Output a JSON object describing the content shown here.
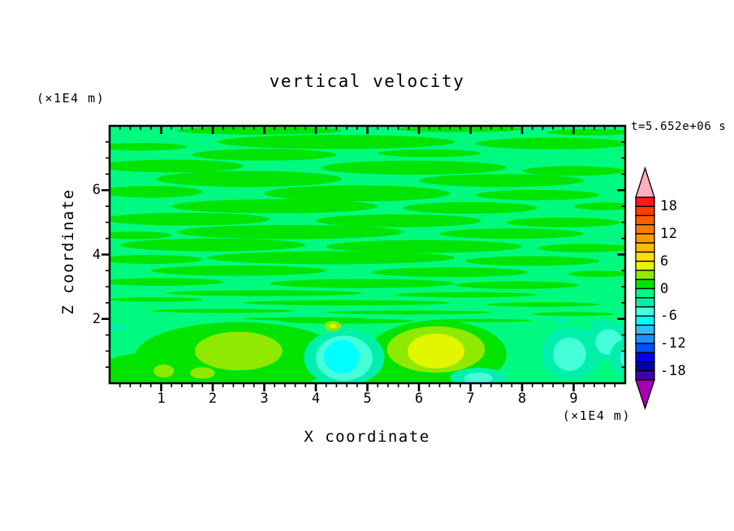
{
  "title": "vertical velocity",
  "timestamp": "t=5.652e+06 s",
  "axes": {
    "x": {
      "label": "X coordinate",
      "unit_note": "(×1E4 m)",
      "min": 0,
      "max": 10,
      "tick_labels": [
        "1",
        "2",
        "3",
        "4",
        "5",
        "6",
        "7",
        "8",
        "9"
      ],
      "major_ticks": [
        1,
        2,
        3,
        4,
        5,
        6,
        7,
        8,
        9
      ],
      "minor_step": 0.2
    },
    "z": {
      "label": "Z coordinate",
      "unit_note": "(×1E4 m)",
      "min": 0,
      "max": 8,
      "tick_labels": [
        "6",
        "4",
        "2"
      ],
      "major_ticks": [
        6,
        4,
        2
      ],
      "minor_step": 0.5
    }
  },
  "chart_data": {
    "type": "filled-contour",
    "title": "vertical velocity",
    "time_annotation": "t=5.652e+06 s",
    "xlabel": "X coordinate (×1E4 m)",
    "ylabel": "Z coordinate (×1E4 m)",
    "xlim": [
      0,
      10
    ],
    "ylim": [
      0,
      8
    ],
    "contour_interval": 2,
    "colorbar": {
      "vmax": 20,
      "vmin": -20,
      "step": 2,
      "labels": [
        "18",
        "12",
        "6",
        "0",
        "-6",
        "-12",
        "-18"
      ],
      "label_values": [
        18,
        12,
        6,
        0,
        -6,
        -12,
        -18
      ],
      "over_color": "#FFB0BC",
      "under_color": "#A800B4",
      "segment_colors_top_to_bottom": [
        "#FF1A1A",
        "#FF3C00",
        "#FF5C00",
        "#FF7C00",
        "#FF9C00",
        "#FFBC00",
        "#FFDE00",
        "#E2F600",
        "#8FE900",
        "#00E400",
        "#00FA80",
        "#00F0AC",
        "#45FFD9",
        "#00FFFF",
        "#2FBFFF",
        "#1E8FFF",
        "#0050FF",
        "#0000E8",
        "#0000A8",
        "#4400A8"
      ]
    },
    "palette": {
      "background": "#00FA80",
      "green": "#00E400",
      "chartreuse": "#8FE900",
      "yellow": "#E2F600",
      "aqua": "#00F0AC",
      "lightturq": "#45FFD9",
      "cyan": "#00FFFF"
    },
    "background_level_range": "-2..0",
    "field_summary": "Mostly near-zero field: wavy horizontal bands of 0..2 (green) on a -2..0 (spring green) background aloft; fine striations near z=2-3; updraft blobs (up to 4..6) near surface at x=1.5-3 and x=5.5-7; downdraft pockets (down to -8..-6) near surface at x=4-5 and x=8.5-10.",
    "streaks_level_0_to_2": [
      [
        2.9,
        7.85,
        1.6,
        0.12
      ],
      [
        6.8,
        7.9,
        1.2,
        0.1
      ],
      [
        9.3,
        7.8,
        0.8,
        0.1
      ],
      [
        4.4,
        7.5,
        2.3,
        0.22
      ],
      [
        8.6,
        7.45,
        1.5,
        0.18
      ],
      [
        0.6,
        7.35,
        0.9,
        0.12
      ],
      [
        3.0,
        7.1,
        1.4,
        0.18
      ],
      [
        6.2,
        7.15,
        1.0,
        0.12
      ],
      [
        1.2,
        6.75,
        1.4,
        0.2
      ],
      [
        5.9,
        6.7,
        1.8,
        0.22
      ],
      [
        9.0,
        6.6,
        1.0,
        0.15
      ],
      [
        2.7,
        6.35,
        1.8,
        0.25
      ],
      [
        7.6,
        6.3,
        1.6,
        0.2
      ],
      [
        0.8,
        5.95,
        1.0,
        0.18
      ],
      [
        4.8,
        5.9,
        1.8,
        0.25
      ],
      [
        8.3,
        5.85,
        1.2,
        0.16
      ],
      [
        3.2,
        5.5,
        2.0,
        0.22
      ],
      [
        7.0,
        5.45,
        1.3,
        0.18
      ],
      [
        9.6,
        5.5,
        0.6,
        0.12
      ],
      [
        1.5,
        5.1,
        1.6,
        0.2
      ],
      [
        5.6,
        5.05,
        1.6,
        0.2
      ],
      [
        8.8,
        5.0,
        1.1,
        0.15
      ],
      [
        3.5,
        4.7,
        2.2,
        0.22
      ],
      [
        7.8,
        4.65,
        1.4,
        0.16
      ],
      [
        0.5,
        4.6,
        0.7,
        0.12
      ],
      [
        2.0,
        4.3,
        1.8,
        0.2
      ],
      [
        6.1,
        4.25,
        1.9,
        0.2
      ],
      [
        9.2,
        4.2,
        0.9,
        0.13
      ],
      [
        4.3,
        3.9,
        2.4,
        0.2
      ],
      [
        0.8,
        3.85,
        1.0,
        0.14
      ],
      [
        8.2,
        3.8,
        1.3,
        0.15
      ],
      [
        2.5,
        3.5,
        1.7,
        0.16
      ],
      [
        6.6,
        3.45,
        1.5,
        0.15
      ],
      [
        9.5,
        3.4,
        0.6,
        0.1
      ],
      [
        1.0,
        3.15,
        1.2,
        0.12
      ],
      [
        4.9,
        3.1,
        1.8,
        0.14
      ],
      [
        7.9,
        3.05,
        1.2,
        0.12
      ],
      [
        3.0,
        2.8,
        1.9,
        0.09
      ],
      [
        6.9,
        2.75,
        1.4,
        0.08
      ],
      [
        0.9,
        2.6,
        0.9,
        0.07
      ],
      [
        4.6,
        2.5,
        2.0,
        0.08
      ],
      [
        8.4,
        2.45,
        1.1,
        0.07
      ],
      [
        2.2,
        2.25,
        1.4,
        0.06
      ],
      [
        5.8,
        2.2,
        1.6,
        0.06
      ],
      [
        9.0,
        2.15,
        0.8,
        0.06
      ],
      [
        3.8,
        2.0,
        1.2,
        0.05
      ],
      [
        7.2,
        1.95,
        1.0,
        0.05
      ],
      [
        4.6,
        1.93,
        1.3,
        0.08
      ],
      [
        0.5,
        0.12,
        0.7,
        0.1
      ],
      [
        5.3,
        0.1,
        0.9,
        0.12
      ]
    ],
    "features": [
      [
        "green",
        2.5,
        0.85,
        2.0,
        1.05
      ],
      [
        "green",
        0.8,
        0.4,
        1.0,
        0.55
      ],
      [
        "green",
        3.3,
        0.35,
        0.8,
        0.45
      ],
      [
        "green",
        6.35,
        0.9,
        1.35,
        1.05
      ],
      [
        "green",
        5.4,
        0.3,
        0.7,
        0.4
      ],
      [
        "chartreuse",
        2.5,
        1.0,
        0.85,
        0.6
      ],
      [
        "chartreuse",
        1.05,
        0.38,
        0.2,
        0.2
      ],
      [
        "chartreuse",
        1.8,
        0.32,
        0.24,
        0.18
      ],
      [
        "chartreuse",
        6.33,
        1.05,
        0.95,
        0.72
      ],
      [
        "yellow",
        6.33,
        1.0,
        0.55,
        0.54
      ],
      [
        "aqua",
        4.55,
        0.8,
        0.78,
        0.88
      ],
      [
        "lightturq",
        4.55,
        0.78,
        0.55,
        0.7
      ],
      [
        "cyan",
        4.5,
        0.82,
        0.34,
        0.52
      ],
      [
        "chartreuse",
        4.33,
        1.78,
        0.16,
        0.16
      ],
      [
        "yellow",
        4.33,
        1.78,
        0.07,
        0.07
      ],
      [
        "aqua",
        8.95,
        0.95,
        0.58,
        0.82
      ],
      [
        "lightturq",
        8.92,
        0.9,
        0.32,
        0.52
      ],
      [
        "aqua",
        9.68,
        1.3,
        0.46,
        0.62
      ],
      [
        "lightturq",
        9.68,
        1.28,
        0.26,
        0.4
      ],
      [
        "aqua",
        9.5,
        1.9,
        0.22,
        0.1
      ],
      [
        "aqua",
        10.0,
        0.8,
        0.3,
        0.55
      ],
      [
        "lightturq",
        10.05,
        0.8,
        0.15,
        0.3
      ],
      [
        "aqua",
        7.15,
        0.18,
        0.55,
        0.3
      ],
      [
        "lightturq",
        7.15,
        0.15,
        0.28,
        0.18
      ],
      [
        "aqua",
        0.15,
        1.72,
        0.22,
        0.1
      ],
      [
        "aqua",
        8.75,
        1.95,
        0.15,
        0.08
      ]
    ]
  }
}
